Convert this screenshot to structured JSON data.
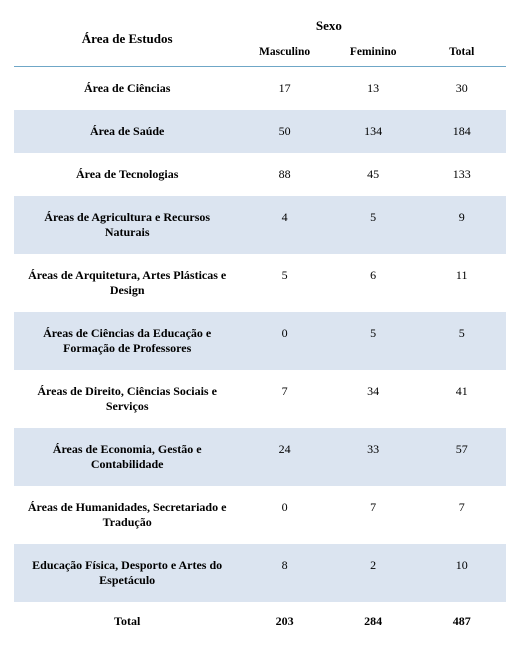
{
  "colors": {
    "alt_row_bg": "#dbe4f0",
    "line_color": "#6fa7c7",
    "text_color": "#000000",
    "bg_color": "#ffffff"
  },
  "header": {
    "col_label": "Área de Estudos",
    "group_label": "Sexo",
    "sub1": "Masculino",
    "sub2": "Feminino",
    "sub3": "Total"
  },
  "rows": [
    {
      "label": "Área de Ciências",
      "m": "17",
      "f": "13",
      "t": "30"
    },
    {
      "label": "Área de Saúde",
      "m": "50",
      "f": "134",
      "t": "184"
    },
    {
      "label": "Área de Tecnologias",
      "m": "88",
      "f": "45",
      "t": "133"
    },
    {
      "label": "Áreas de Agricultura e Recursos Naturais",
      "m": "4",
      "f": "5",
      "t": "9"
    },
    {
      "label": "Áreas de Arquitetura, Artes Plásticas e Design",
      "m": "5",
      "f": "6",
      "t": "11"
    },
    {
      "label": "Áreas de Ciências da Educação e Formação de Professores",
      "m": "0",
      "f": "5",
      "t": "5"
    },
    {
      "label": "Áreas de Direito, Ciências Sociais e Serviços",
      "m": "7",
      "f": "34",
      "t": "41"
    },
    {
      "label": "Áreas de Economia, Gestão e Contabilidade",
      "m": "24",
      "f": "33",
      "t": "57"
    },
    {
      "label": "Áreas de Humanidades, Secretariado e Tradução",
      "m": "0",
      "f": "7",
      "t": "7"
    },
    {
      "label": "Educação Física, Desporto e Artes do Espetáculo",
      "m": "8",
      "f": "2",
      "t": "10"
    }
  ],
  "footer": {
    "label": "Total",
    "m": "203",
    "f": "284",
    "t": "487"
  }
}
